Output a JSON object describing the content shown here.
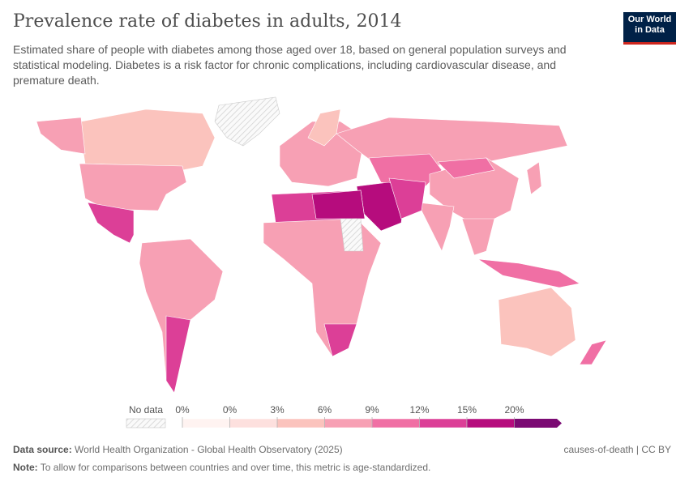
{
  "header": {
    "title": "Prevalence rate of diabetes in adults, 2014",
    "subtitle": "Estimated share of people with diabetes among those aged over 18, based on general population surveys and statistical modeling. Diabetes is a risk factor for chronic complications, including cardiovascular disease, and premature death.",
    "logo": [
      "Our World",
      "in Data"
    ]
  },
  "legend": {
    "no_data": "No data",
    "labels": [
      "0%",
      "0%",
      "3%",
      "6%",
      "9%",
      "12%",
      "15%",
      "20%"
    ],
    "colors": [
      "#fff3f1",
      "#fde0de",
      "#fbc3bd",
      "#f7a0b4",
      "#f06fa4",
      "#dc3f97",
      "#b60c7d",
      "#7b0a73"
    ]
  },
  "footer": {
    "source_label": "Data source:",
    "source": "World Health Organization - Global Health Observatory (2025)",
    "license": "causes-of-death | CC BY",
    "note_label": "Note:",
    "note": "To allow for comparisons between countries and over time, this metric is age-standardized."
  }
}
